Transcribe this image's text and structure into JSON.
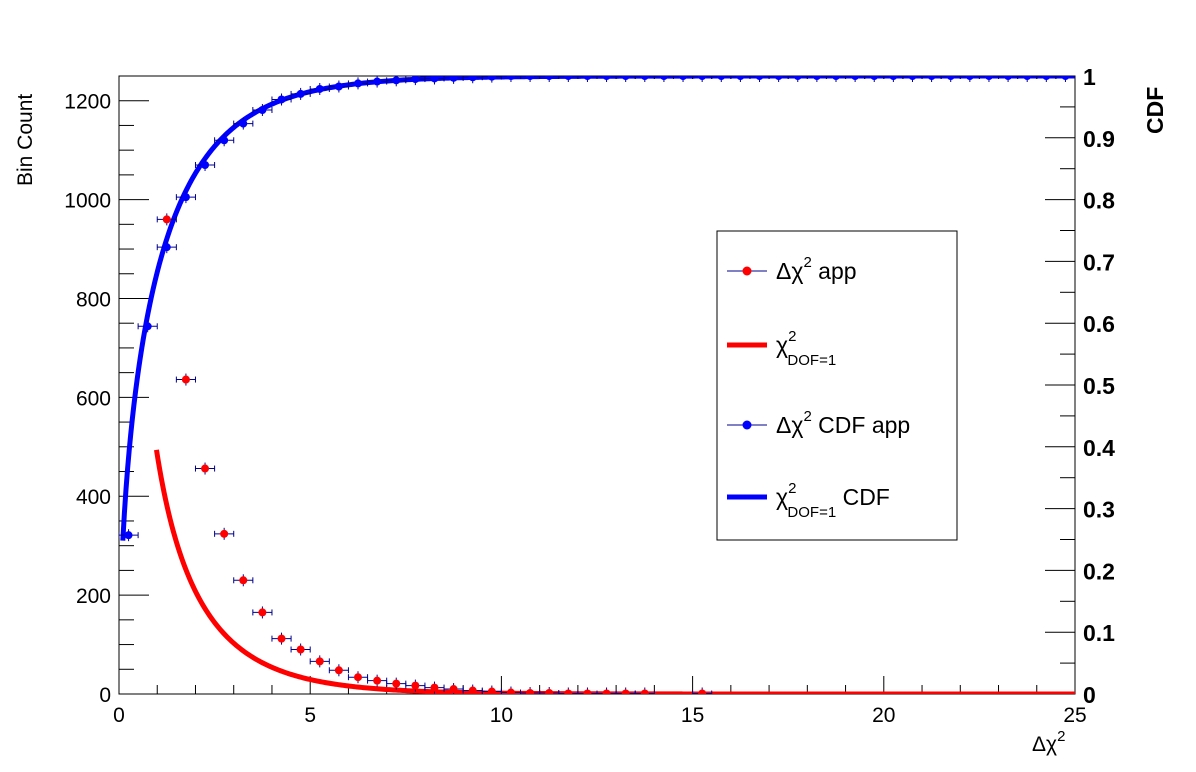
{
  "chart_data": {
    "type": "line",
    "x_axis": {
      "label_prefix": "Δχ",
      "label_sup": "2",
      "range": [
        0,
        25
      ],
      "ticks": [
        "0",
        "5",
        "10",
        "15",
        "20",
        "25"
      ]
    },
    "y_axis_left": {
      "label": "Bin Count",
      "range": [
        0,
        1250
      ],
      "ticks": [
        "0",
        "200",
        "400",
        "600",
        "800",
        "1000",
        "1200"
      ]
    },
    "y_axis_right": {
      "label": "CDF",
      "range": [
        0,
        1
      ],
      "ticks": [
        "0",
        "0.1",
        "0.2",
        "0.3",
        "0.4",
        "0.5",
        "0.6",
        "0.7",
        "0.8",
        "0.9",
        "1"
      ]
    },
    "legend": {
      "placement": "center-right",
      "entries": [
        {
          "prefix": "Δχ",
          "sup": "2",
          "sub": "",
          "suffix": " app",
          "style": "marker",
          "color": "#ff0000"
        },
        {
          "prefix": "χ",
          "sup": "2",
          "sub": "DOF=1",
          "suffix": "",
          "style": "line",
          "color": "#ff0000"
        },
        {
          "prefix": "Δχ",
          "sup": "2",
          "sub": "",
          "suffix": " CDF app",
          "style": "marker",
          "color": "#0000ff"
        },
        {
          "prefix": "χ",
          "sup": "2",
          "sub": "DOF=1",
          "suffix": " CDF",
          "style": "line",
          "color": "#0000ff"
        }
      ]
    },
    "series": [
      {
        "kind": "points",
        "axis": "left",
        "color": "#ff0000",
        "xerr": 0.25,
        "x": [
          1.25,
          1.75,
          2.25,
          2.75,
          3.25,
          3.75,
          4.25,
          4.75,
          5.25,
          5.75,
          6.25,
          6.75,
          7.25,
          7.75,
          8.25,
          8.75,
          9.25,
          9.75,
          10.25,
          10.75,
          11.25,
          11.75,
          12.25,
          12.75,
          13.25,
          13.75,
          15.25
        ],
        "y": [
          960,
          636,
          456,
          324,
          230,
          165,
          112,
          90,
          66,
          48,
          34,
          27,
          21,
          17,
          13,
          10,
          7,
          5,
          3,
          2,
          2,
          1,
          1,
          1,
          1,
          1,
          1
        ]
      },
      {
        "kind": "points",
        "axis": "right",
        "color": "#0000ff",
        "xerr": 0.25,
        "x": [
          0.25,
          0.75,
          1.25,
          1.75,
          2.25,
          2.75,
          3.25,
          3.75,
          4.25,
          4.75,
          5.25,
          5.75,
          6.25,
          6.75,
          7.25,
          7.75,
          8.25,
          8.75,
          9.25,
          9.75,
          10.25,
          10.75,
          11.25,
          11.75,
          12.25,
          12.75,
          13.25,
          13.75,
          14.25,
          14.75,
          15.25,
          15.75,
          16.25,
          16.75,
          17.25,
          17.75,
          18.25,
          18.75,
          19.25,
          19.75,
          20.25,
          20.75,
          21.25,
          21.75,
          22.25,
          22.75,
          23.25,
          23.75,
          24.25,
          24.75
        ],
        "y": [
          0.257,
          0.595,
          0.723,
          0.804,
          0.856,
          0.896,
          0.923,
          0.945,
          0.962,
          0.971,
          0.979,
          0.983,
          0.988,
          0.991,
          0.993,
          0.995,
          0.996,
          0.997,
          0.998,
          0.999,
          1,
          1,
          1,
          1,
          1,
          1,
          1,
          1,
          1,
          1,
          1,
          1,
          1,
          1,
          1,
          1,
          1,
          1,
          1,
          1,
          1,
          1,
          1,
          1,
          1,
          1,
          1,
          1,
          1,
          1
        ]
      },
      {
        "kind": "curve",
        "axis": "left",
        "color": "#ff0000",
        "function": "chi2_pdf_dof1",
        "normalization": 2000,
        "x_range": [
          0.98,
          25
        ]
      },
      {
        "kind": "curve",
        "axis": "right",
        "color": "#0000ff",
        "function": "chi2_cdf_dof1",
        "x_range": [
          0.1,
          25
        ]
      }
    ]
  }
}
